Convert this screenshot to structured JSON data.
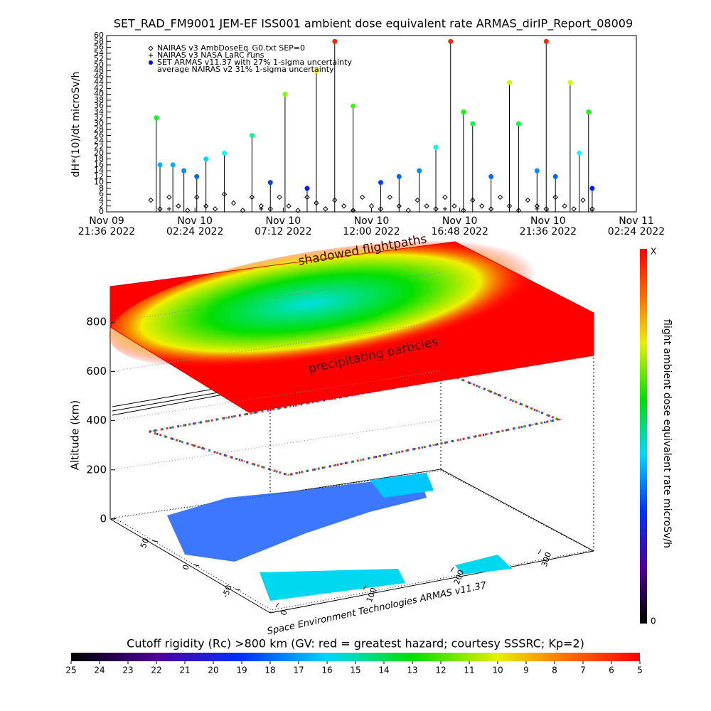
{
  "chart_data": [
    {
      "type": "scatter",
      "title": "SET_RAD_FM9001  JEM-EF ISS001 ambient dose equivalent rate ARMAS_dirIP_Report_08009",
      "y_label": "dH*(10)/dt microSv/h",
      "xlim": [
        21.6,
        50.4
      ],
      "xticks": [
        {
          "value": 21.6,
          "label": "Nov 09\n21:36 2022"
        },
        {
          "value": 26.4,
          "label": "Nov 10\n02:24 2022"
        },
        {
          "value": 31.2,
          "label": "Nov 10\n07:12 2022"
        },
        {
          "value": 36,
          "label": "Nov 10\n12:00 2022"
        },
        {
          "value": 40.8,
          "label": "Nov 10\n16:48 2022"
        },
        {
          "value": 45.6,
          "label": "Nov 10\n21:36 2022"
        },
        {
          "value": 50.4,
          "label": "Nov 11\n02:24 2022"
        }
      ],
      "ylim": [
        0,
        60
      ],
      "yticks": [
        0,
        2,
        4,
        6,
        8,
        10,
        12,
        14,
        16,
        18,
        20,
        22,
        24,
        26,
        28,
        30,
        32,
        34,
        36,
        38,
        40,
        42,
        44,
        46,
        48,
        50,
        52,
        54,
        56,
        58,
        60
      ],
      "legend_note": "average NAIRAS v2 31% 1-sigma uncertainty",
      "series": [
        {
          "name": "NAIRAS v3 AmbDoseEq_G0.txt SEP=0",
          "color": "#000000",
          "marker": "diamond",
          "x": [
            24,
            24.5,
            25,
            25.5,
            26,
            26.5,
            27,
            27.5,
            28,
            28.5,
            29,
            29.5,
            30,
            30.5,
            31,
            31.5,
            32,
            32.5,
            33,
            33.5,
            34,
            34.5,
            35,
            35.5,
            36,
            36.5,
            37,
            37.5,
            38,
            38.5,
            39,
            39.5,
            40,
            40.5,
            41,
            41.5,
            42,
            42.5,
            43,
            43.5,
            44,
            44.5,
            45,
            45.5,
            46,
            46.5,
            47,
            47.5,
            48
          ],
          "values": [
            4,
            1,
            5,
            2,
            0.5,
            5,
            2,
            1,
            6,
            3,
            0.5,
            5,
            2,
            1,
            5,
            2,
            0.5,
            5,
            3,
            1,
            4,
            2,
            0.5,
            5,
            2,
            1,
            5,
            2,
            0.5,
            4,
            2,
            1,
            5,
            2,
            0.5,
            4,
            2,
            1,
            5,
            2,
            0.5,
            4,
            2,
            1,
            5,
            2,
            1,
            4,
            1
          ]
        },
        {
          "name": "NAIRAS v3 NASA LaRC runs",
          "color": "#000000",
          "marker": "plus",
          "x": [
            25,
            30,
            35,
            40,
            45,
            48
          ],
          "values": [
            1,
            1,
            0.5,
            1,
            1,
            0.5
          ]
        },
        {
          "name": "SET ARMAS v11.37 with 27% 1-sigma uncertainty",
          "color": "#0000ff",
          "marker": "dot",
          "x": [
            24.3,
            24.5,
            25.2,
            25.8,
            26.5,
            27,
            28,
            29.5,
            30.5,
            31.3,
            32.5,
            33,
            34,
            35,
            36.5,
            37.5,
            38.6,
            39.5,
            40.3,
            41,
            41.5,
            42.5,
            43.5,
            44,
            45,
            45.5,
            46,
            46.8,
            47.3,
            47.8,
            48
          ],
          "values": [
            32,
            16,
            16,
            14,
            12,
            18,
            20,
            26,
            10,
            40,
            8,
            48,
            58,
            36,
            10,
            12,
            14,
            22,
            58,
            34,
            30,
            12,
            44,
            30,
            14,
            58,
            12,
            44,
            20,
            34,
            8
          ]
        }
      ]
    },
    {
      "type": "surface3d",
      "annotations": [
        "shadowed flightpaths",
        "precipitating particles"
      ],
      "credit": "Space Environment Technologies ARMAS v11.37",
      "z_label": "Altitude (km)",
      "zticks": [
        0,
        200,
        400,
        600,
        800
      ],
      "latticks": [
        -50,
        0,
        50
      ],
      "lonticks": [
        0,
        100,
        200,
        300
      ]
    },
    {
      "type": "colorbar",
      "orientation": "horizontal",
      "title": "Cutoff rigidity (Rc) >800 km (GV: red = greatest hazard; courtesy SSSRC; Kp=2)",
      "xlim": [
        25,
        5
      ],
      "xticks": [
        25,
        24,
        23,
        22,
        21,
        20,
        19,
        18,
        17,
        16,
        15,
        14,
        13,
        12,
        11,
        10,
        9,
        8,
        7,
        6,
        5
      ]
    },
    {
      "type": "colorbar",
      "orientation": "vertical",
      "title": "flight ambient dose equivalent rate microSv/h",
      "top_label": "X",
      "bottom_label": "0"
    }
  ]
}
